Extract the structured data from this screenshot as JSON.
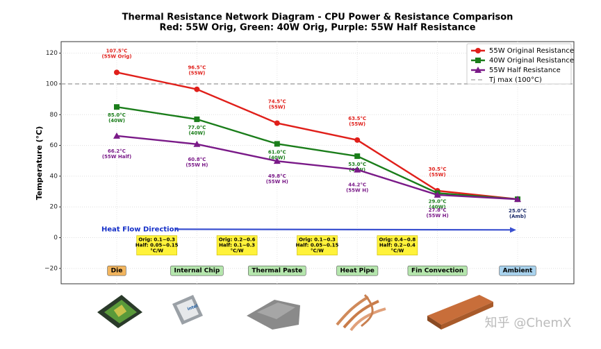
{
  "chart_data": {
    "type": "line",
    "title": "Thermal Resistance Network Diagram - CPU Power & Resistance Comparison",
    "subtitle": "Red: 55W Orig, Green: 40W Orig, Purple: 55W Half Resistance",
    "ylabel": "Temperature (°C)",
    "categories": [
      "Die",
      "Internal Chip",
      "Thermal Paste",
      "Heat Pipe",
      "Fin Convection",
      "Ambient"
    ],
    "category_colors": [
      "#f2b55e",
      "#b5e6ad",
      "#b5e6ad",
      "#b5e6ad",
      "#b5e6ad",
      "#a9d3ee"
    ],
    "series": [
      {
        "name": "55W Original Resistance",
        "color": "#e01f1a",
        "marker": "circle",
        "values": [
          107.5,
          96.5,
          74.5,
          63.5,
          30.5,
          25.0
        ],
        "value_labels": [
          "107.5°C",
          "96.5°C",
          "74.5°C",
          "63.5°C",
          "30.5°C",
          null
        ],
        "label_notes": [
          "(55W Orig)",
          "(55W)",
          "(55W)",
          "(55W)",
          "(55W)",
          null
        ]
      },
      {
        "name": "40W Original Resistance",
        "color": "#1a7d1a",
        "marker": "square",
        "values": [
          85.0,
          77.0,
          61.0,
          53.0,
          29.0,
          25.0
        ],
        "value_labels": [
          "85.0°C",
          "77.0°C",
          "61.0°C",
          "53.0°C",
          "29.0°C",
          null
        ],
        "label_notes": [
          "(40W)",
          "(40W)",
          "(40W)",
          "(40W)",
          "(40W)",
          null
        ]
      },
      {
        "name": "55W Half Resistance",
        "color": "#7a1a88",
        "marker": "triangle",
        "values": [
          66.2,
          60.8,
          49.8,
          44.2,
          27.8,
          25.0
        ],
        "value_labels": [
          "66.2°C",
          "60.8°C",
          "49.8°C",
          "44.2°C",
          "27.8°C",
          null
        ],
        "label_notes": [
          "(55W Half)",
          "(55W H)",
          "(55W H)",
          "(55W H)",
          "(55W H)",
          null
        ]
      }
    ],
    "hline": {
      "value": 100,
      "label": "Tj max (100°C)",
      "color": "#a0a0a0"
    },
    "ambient_label": [
      "25.0°C",
      "(Amb)"
    ],
    "flow_label": "Heat Flow Direction",
    "resistances": [
      {
        "orig": "Orig: 0.1~0.3",
        "half": "Half: 0.05~0.15",
        "unit": "°C/W"
      },
      {
        "orig": "Orig: 0.2~0.6",
        "half": "Half: 0.1~0.3",
        "unit": "°C/W"
      },
      {
        "orig": "Orig: 0.1~0.3",
        "half": "Half: 0.05~0.15",
        "unit": "°C/W"
      },
      {
        "orig": "Orig: 0.4~0.8",
        "half": "Half: 0.2~0.4",
        "unit": "°C/W"
      }
    ],
    "ylim": [
      -30,
      127.5
    ],
    "yticks": [
      {
        "value": -20,
        "label": "−20"
      },
      0,
      20,
      40,
      60,
      80,
      100,
      120
    ],
    "grid": true,
    "legend": "upper right"
  },
  "watermark": "知乎 @ChemX"
}
